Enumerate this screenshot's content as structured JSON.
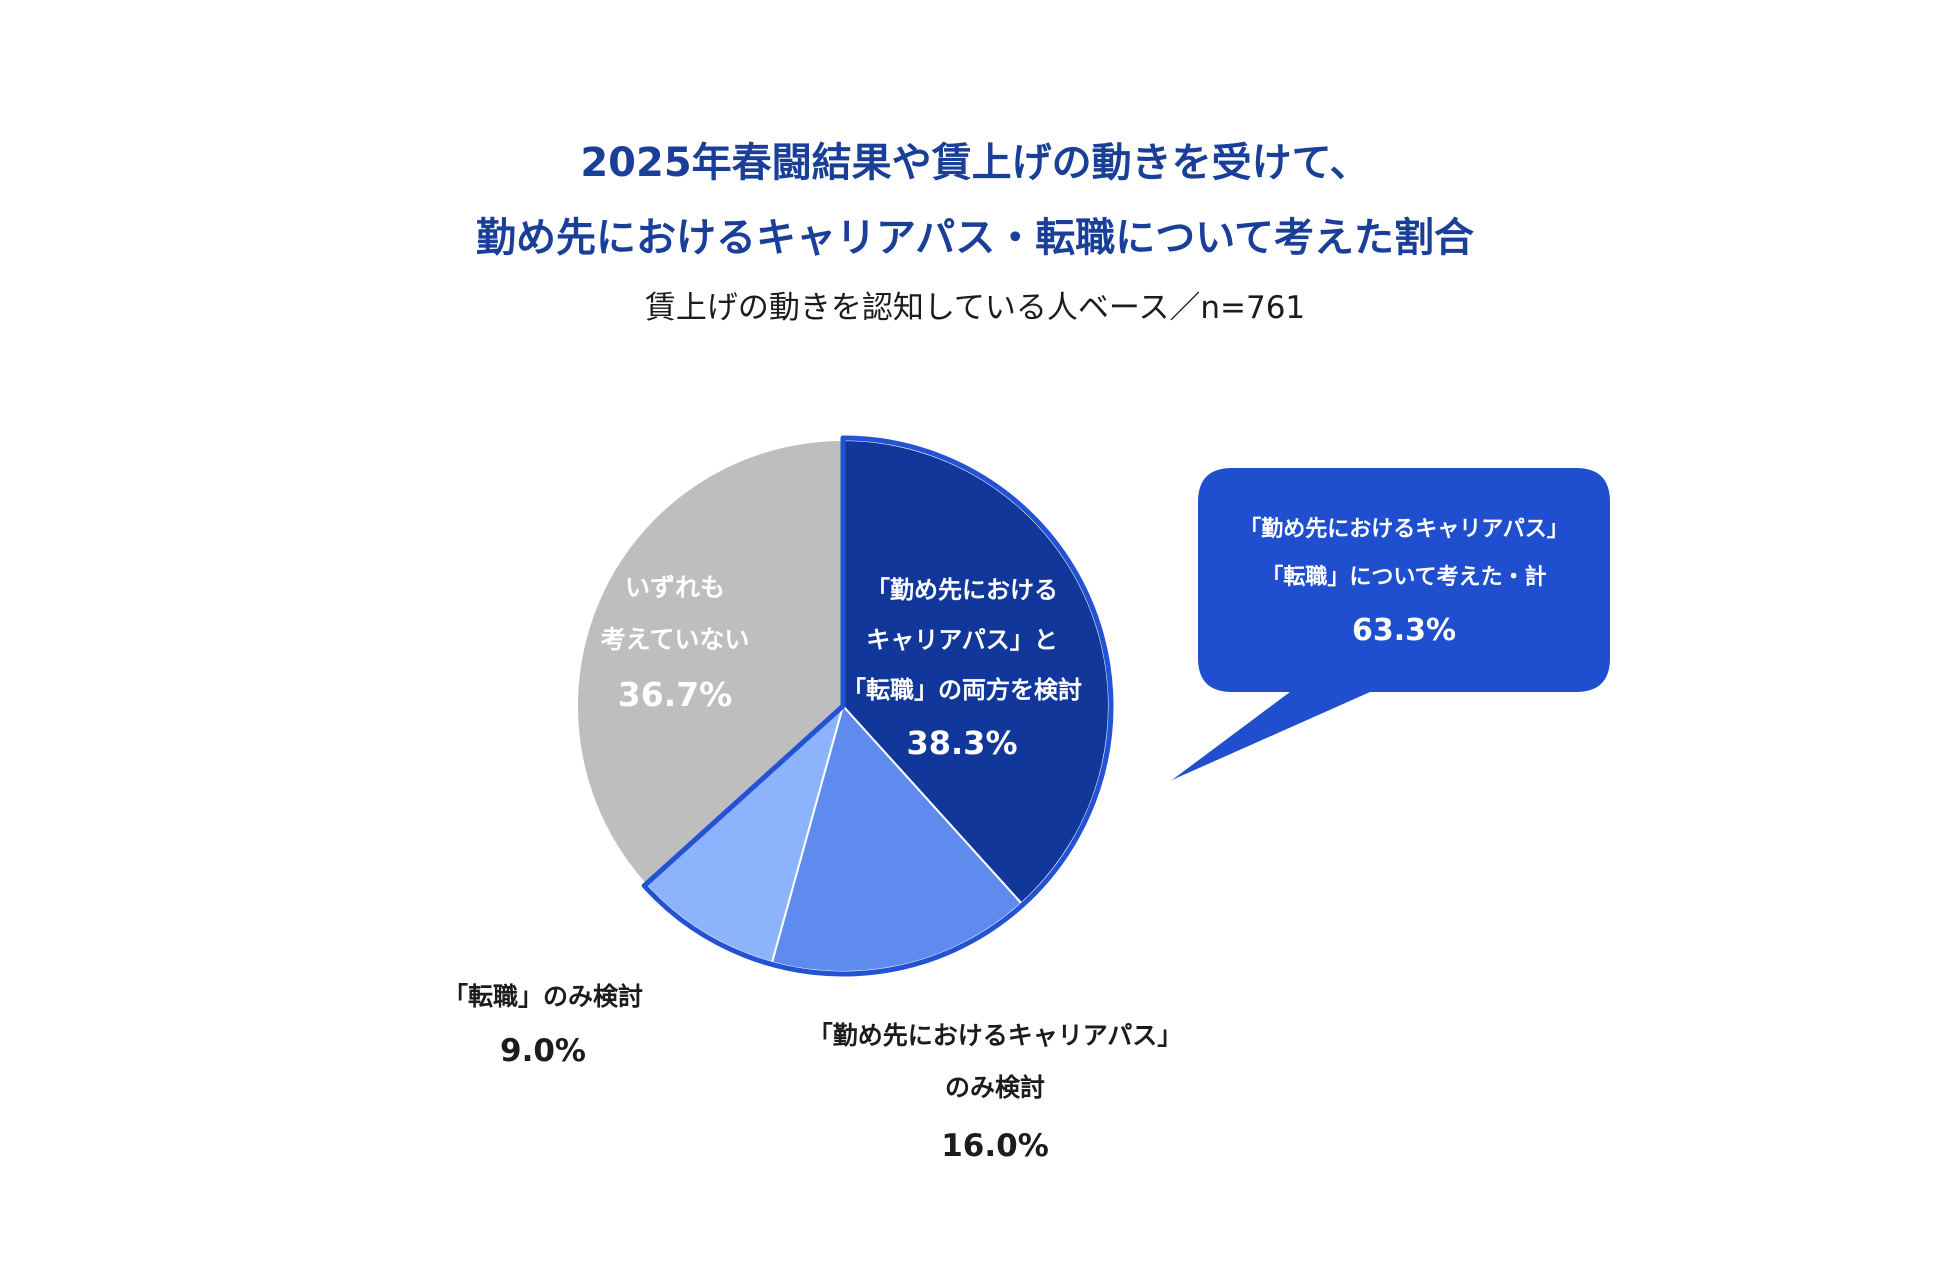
{
  "title_lines": [
    "2025年春闘結果や賃上げの動きを受けて、",
    "勤め先におけるキャリアパス・転職について考えた割合"
  ],
  "subtitle": "賃上げの動きを認知している人ベース／n=761",
  "colors": {
    "title": "#1a3f99",
    "both": "#12379a",
    "career_only": "#5f8bef",
    "job_change_only": "#8cb3fc",
    "neither": "#bebebe",
    "highlight_border": "#2352d4",
    "callout": "#1f4fce"
  },
  "chart_data": {
    "type": "pie",
    "title": "2025年春闘結果や賃上げの動きを受けて、勤め先におけるキャリアパス・転職について考えた割合",
    "subtitle": "賃上げの動きを認知している人ベース／n=761",
    "slices": [
      {
        "key": "both",
        "label_lines": [
          "「勤め先における",
          "キャリアパス」と",
          "「転職」の両方を検討"
        ],
        "value": 38.3,
        "value_label": "38.3%"
      },
      {
        "key": "career_only",
        "label_lines": [
          "「勤め先におけるキャリアパス」",
          "のみ検討"
        ],
        "value": 16.0,
        "value_label": "16.0%"
      },
      {
        "key": "job_change_only",
        "label_lines": [
          "「転職」のみ検討"
        ],
        "value": 9.0,
        "value_label": "9.0%"
      },
      {
        "key": "neither",
        "label_lines": [
          "いずれも",
          "考えていない"
        ],
        "value": 36.7,
        "value_label": "36.7%"
      }
    ],
    "callout": {
      "label_lines": [
        "「勤め先におけるキャリアパス」",
        "「転職」について考えた・計"
      ],
      "value": 63.3,
      "value_label": "63.3%"
    }
  }
}
